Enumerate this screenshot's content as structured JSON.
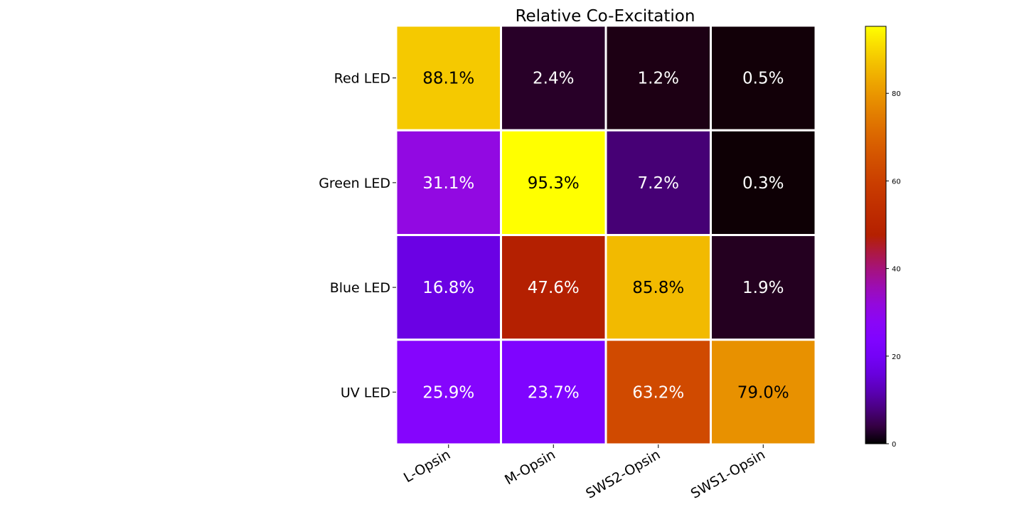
{
  "chart_data": {
    "type": "heatmap",
    "title": "Relative Co-Excitation",
    "rows": [
      "Red LED",
      "Green LED",
      "Blue LED",
      "UV LED"
    ],
    "columns": [
      "L-Opsin",
      "M-Opsin",
      "SWS2-Opsin",
      "SWS1-Opsin"
    ],
    "values": [
      [
        88.1,
        2.4,
        1.2,
        0.5
      ],
      [
        31.1,
        95.3,
        7.2,
        0.3
      ],
      [
        16.8,
        47.6,
        85.8,
        1.9
      ],
      [
        25.9,
        23.7,
        63.2,
        79.0
      ]
    ],
    "value_suffix": "%",
    "colormap": "gnuplot",
    "colorbar": {
      "min": 0,
      "max": 95.3,
      "ticks": [
        0,
        20,
        40,
        60,
        80
      ],
      "tick_labels": [
        "0",
        "20",
        "40",
        "60",
        "80"
      ],
      "placement": "right"
    },
    "cell_border_color": "#ffffff",
    "text_colors": {
      "on_dark": "#ffffff",
      "on_light": "#000000"
    }
  }
}
